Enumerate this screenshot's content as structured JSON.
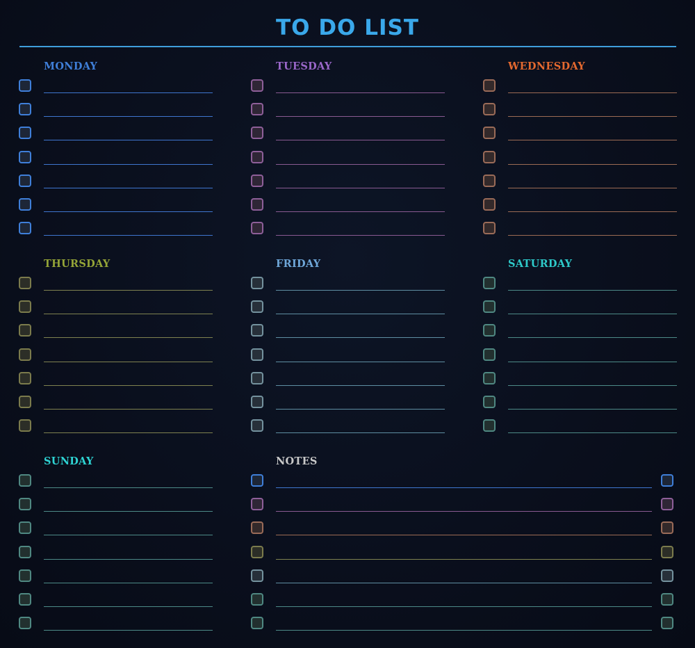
{
  "header": {
    "title": "TO DO LIST"
  },
  "colors": {
    "title": "#3aa8ea",
    "rule": "#3f9edc",
    "monday": "#3f7fd9",
    "tuesday": "#9a67c9",
    "wednesday": "#e4692f",
    "thursday": "#94a437",
    "friday": "#6ea6d8",
    "saturday": "#2ec9c9",
    "sunday": "#2ed2d2",
    "notes": "#c8c8c8"
  },
  "days": [
    {
      "key": "monday",
      "label": "MONDAY",
      "rows": 7,
      "label_color": "#3f7fd9",
      "box_border": "#3f7fd9",
      "box_fill": "#1d2637",
      "line_color": "#3f76d0"
    },
    {
      "key": "tuesday",
      "label": "TUESDAY",
      "rows": 7,
      "label_color": "#9a67c9",
      "box_border": "#8e5f99",
      "box_fill": "#2f2636",
      "line_color": "#8a5a92"
    },
    {
      "key": "wednesday",
      "label": "WEDNESDAY",
      "rows": 7,
      "label_color": "#e4692f",
      "box_border": "#9a6b58",
      "box_fill": "#33292a",
      "line_color": "#9c6b54"
    },
    {
      "key": "thursday",
      "label": "THURSDAY",
      "rows": 7,
      "label_color": "#94a437",
      "box_border": "#7b7b4c",
      "box_fill": "#2c2e27",
      "line_color": "#7f8250"
    },
    {
      "key": "friday",
      "label": "FRIDAY",
      "rows": 7,
      "label_color": "#6ea6d8",
      "box_border": "#74929e",
      "box_fill": "#27303a",
      "line_color": "#5f8fa3"
    },
    {
      "key": "saturday",
      "label": "SATURDAY",
      "rows": 7,
      "label_color": "#2ec9c9",
      "box_border": "#4f8882",
      "box_fill": "#22302f",
      "line_color": "#4d8b88"
    },
    {
      "key": "sunday",
      "label": "SUNDAY",
      "rows": 7,
      "label_color": "#2ed2d2",
      "box_border": "#4f8882",
      "box_fill": "#22302f",
      "line_color": "#4d8b88"
    }
  ],
  "notes": {
    "label": "NOTES",
    "label_color": "#c8c8c8",
    "rows": [
      {
        "box_border": "#3f7fd9",
        "box_fill": "#1d2637",
        "line_color": "#3f76d0"
      },
      {
        "box_border": "#8e5f99",
        "box_fill": "#2f2636",
        "line_color": "#8a5a92"
      },
      {
        "box_border": "#9a6b58",
        "box_fill": "#33292a",
        "line_color": "#9c6b54"
      },
      {
        "box_border": "#7b7b4c",
        "box_fill": "#2c2e27",
        "line_color": "#7f8250"
      },
      {
        "box_border": "#74929e",
        "box_fill": "#27303a",
        "line_color": "#5f8fa3"
      },
      {
        "box_border": "#4f8882",
        "box_fill": "#22302f",
        "line_color": "#4d8b88"
      },
      {
        "box_border": "#4f8882",
        "box_fill": "#22302f",
        "line_color": "#4d8b88"
      }
    ]
  }
}
